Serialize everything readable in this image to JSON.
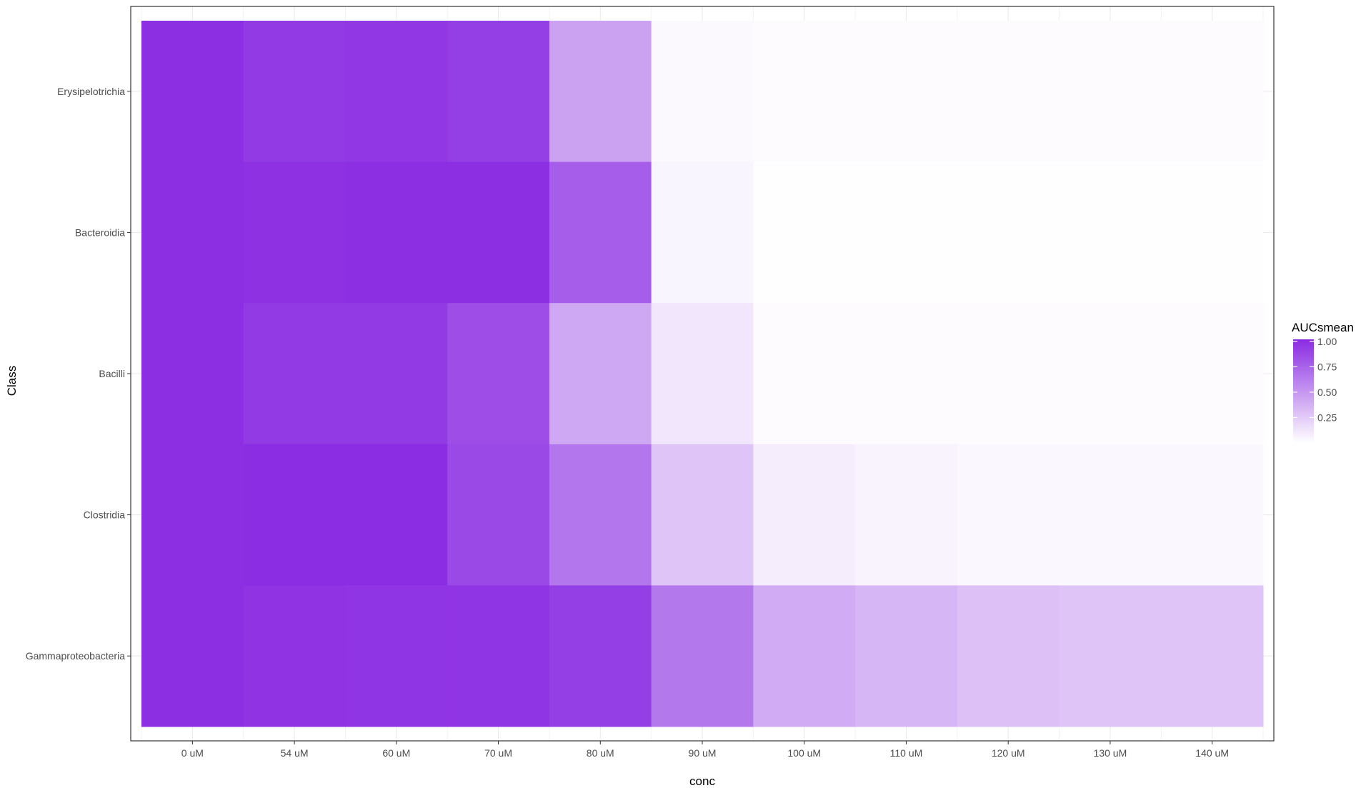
{
  "chart_data": {
    "type": "heatmap",
    "title": "",
    "xlabel": "conc",
    "ylabel": "Class",
    "x_categories": [
      "0 uM",
      "54 uM",
      "60 uM",
      "70 uM",
      "80 uM",
      "90 uM",
      "100 uM",
      "110 uM",
      "120 uM",
      "130 uM",
      "140 uM"
    ],
    "y_categories": [
      "Erysipelotrichia",
      "Bacteroidia",
      "Bacilli",
      "Clostridia",
      "Gammaproteobacteria"
    ],
    "values": [
      [
        1.0,
        0.95,
        0.96,
        0.93,
        0.45,
        0.03,
        0.02,
        0.02,
        0.02,
        0.02,
        0.02
      ],
      [
        1.0,
        0.99,
        1.0,
        1.0,
        0.78,
        0.05,
        0.01,
        0.01,
        0.01,
        0.01,
        0.01
      ],
      [
        1.0,
        0.95,
        0.95,
        0.85,
        0.42,
        0.12,
        0.02,
        0.02,
        0.02,
        0.02,
        0.02
      ],
      [
        1.0,
        1.01,
        1.01,
        0.88,
        0.66,
        0.28,
        0.09,
        0.06,
        0.04,
        0.04,
        0.04
      ],
      [
        1.0,
        0.98,
        0.97,
        0.97,
        0.93,
        0.65,
        0.4,
        0.35,
        0.3,
        0.28,
        0.28
      ]
    ],
    "legend": {
      "title": "AUCsmean",
      "ticks": [
        1.0,
        0.75,
        0.5,
        0.25
      ],
      "tick_labels": [
        "1.00",
        "0.75",
        "0.50",
        "0.25"
      ],
      "range": [
        0,
        1.02
      ],
      "position": "right"
    },
    "color_low": "#ffffff",
    "color_high": "#8a2be2",
    "grid": true
  }
}
